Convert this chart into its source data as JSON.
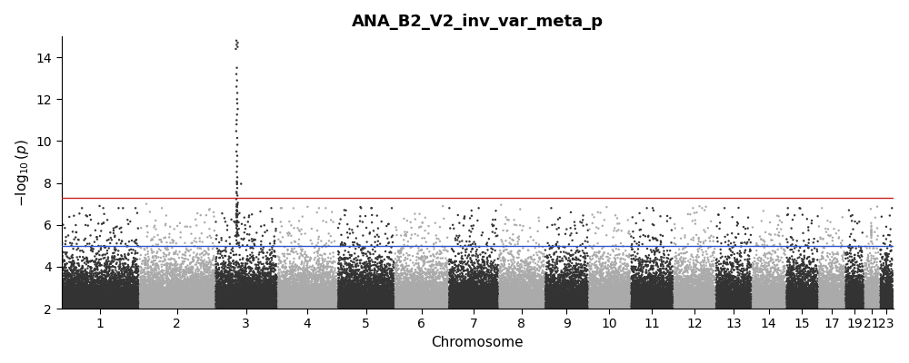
{
  "title": "ANA_B2_V2_inv_var_meta_p",
  "xlabel": "Chromosome",
  "ylabel": "$-log_{10}(p)$",
  "ylim": [
    2,
    15
  ],
  "yticks": [
    2,
    4,
    6,
    8,
    10,
    12,
    14
  ],
  "genome_line": 7.3,
  "suggestive_line": 5.0,
  "genome_line_color": "#cc2222",
  "suggestive_line_color": "#3355cc",
  "chrom_labels": [
    "1",
    "2",
    "3",
    "4",
    "5",
    "6",
    "7",
    "8",
    "9",
    "10",
    "11",
    "12",
    "13",
    "14",
    "15",
    "17",
    "19",
    "21",
    "23"
  ],
  "chrom_sizes": [
    249,
    242,
    198,
    191,
    181,
    171,
    159,
    146,
    138,
    133,
    135,
    133,
    114,
    107,
    102,
    83,
    59,
    47,
    40
  ],
  "color_even": "#aaaaaa",
  "color_odd": "#333333",
  "title_fontsize": 13,
  "axis_fontsize": 11,
  "tick_fontsize": 10,
  "background_color": "#ffffff",
  "seed": 12345,
  "n_variants_per_chrom": [
    8000,
    7500,
    6500,
    6000,
    5800,
    5200,
    4800,
    4400,
    4200,
    4000,
    4100,
    3900,
    3300,
    3100,
    2900,
    2500,
    1800,
    1500,
    1300
  ],
  "point_size": 3.0,
  "point_alpha": 1.0,
  "chr3_spike_n": 60,
  "chr3_spike_peak": 14.8,
  "chr21_spike_n": 15,
  "chr21_spike_peak": 6.1
}
